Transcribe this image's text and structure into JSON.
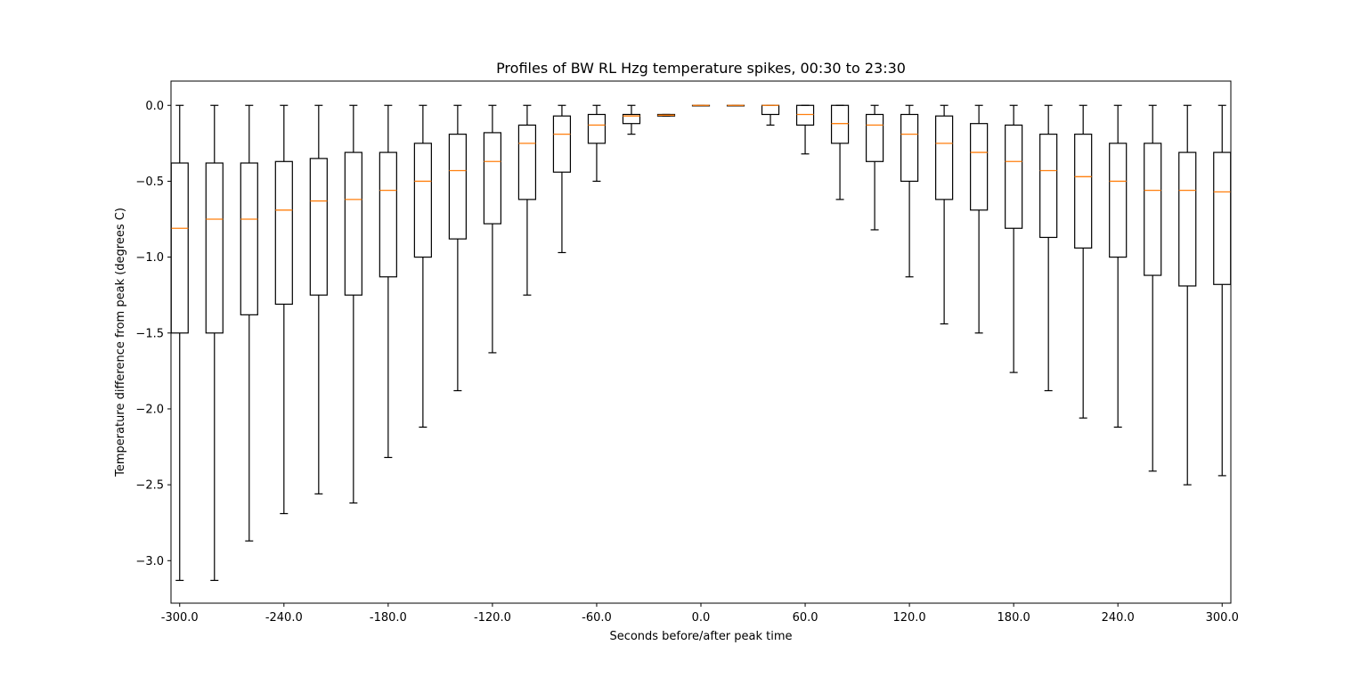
{
  "chart_data": {
    "type": "boxplot",
    "title": "Profiles of BW RL Hzg temperature spikes, 00:30 to 23:30",
    "xlabel": "Seconds before/after peak time",
    "ylabel": "Temperature difference from peak (degrees C)",
    "xlim": [
      -305,
      305
    ],
    "ylim": [
      -3.28,
      0.16
    ],
    "x_ticks": [
      -300,
      -240,
      -180,
      -120,
      -60,
      0,
      60,
      120,
      180,
      240,
      300
    ],
    "x_tick_labels": [
      "-300.0",
      "-240.0",
      "-180.0",
      "-120.0",
      "-60.0",
      "0.0",
      "60.0",
      "120.0",
      "180.0",
      "240.0",
      "300.0"
    ],
    "y_ticks": [
      0,
      -0.5,
      -1,
      -1.5,
      -2,
      -2.5,
      -3
    ],
    "y_tick_labels": [
      "0.0",
      "−0.5",
      "−1.0",
      "−1.5",
      "−2.0",
      "−2.5",
      "−3.0"
    ],
    "boxes": [
      {
        "x": -300,
        "whislo": -3.13,
        "q1": -1.5,
        "med": -0.81,
        "q3": -0.38,
        "whishi": 0.0
      },
      {
        "x": -280,
        "whislo": -3.13,
        "q1": -1.5,
        "med": -0.75,
        "q3": -0.38,
        "whishi": 0.0
      },
      {
        "x": -260,
        "whislo": -2.87,
        "q1": -1.38,
        "med": -0.75,
        "q3": -0.38,
        "whishi": 0.0
      },
      {
        "x": -240,
        "whislo": -2.69,
        "q1": -1.31,
        "med": -0.69,
        "q3": -0.37,
        "whishi": 0.0
      },
      {
        "x": -220,
        "whislo": -2.56,
        "q1": -1.25,
        "med": -0.63,
        "q3": -0.35,
        "whishi": 0.0
      },
      {
        "x": -200,
        "whislo": -2.62,
        "q1": -1.25,
        "med": -0.62,
        "q3": -0.31,
        "whishi": 0.0
      },
      {
        "x": -180,
        "whislo": -2.32,
        "q1": -1.13,
        "med": -0.56,
        "q3": -0.31,
        "whishi": 0.0
      },
      {
        "x": -160,
        "whislo": -2.12,
        "q1": -1.0,
        "med": -0.5,
        "q3": -0.25,
        "whishi": 0.0
      },
      {
        "x": -140,
        "whislo": -1.88,
        "q1": -0.88,
        "med": -0.43,
        "q3": -0.19,
        "whishi": 0.0
      },
      {
        "x": -120,
        "whislo": -1.63,
        "q1": -0.78,
        "med": -0.37,
        "q3": -0.18,
        "whishi": 0.0
      },
      {
        "x": -100,
        "whislo": -1.25,
        "q1": -0.62,
        "med": -0.25,
        "q3": -0.13,
        "whishi": 0.0
      },
      {
        "x": -80,
        "whislo": -0.97,
        "q1": -0.44,
        "med": -0.19,
        "q3": -0.07,
        "whishi": 0.0
      },
      {
        "x": -60,
        "whislo": -0.5,
        "q1": -0.25,
        "med": -0.13,
        "q3": -0.06,
        "whishi": 0.0
      },
      {
        "x": -40,
        "whislo": -0.19,
        "q1": -0.12,
        "med": -0.07,
        "q3": -0.06,
        "whishi": 0.0
      },
      {
        "x": -20,
        "whislo": -0.07,
        "q1": -0.07,
        "med": -0.065,
        "q3": -0.06,
        "whishi": -0.06
      },
      {
        "x": 0,
        "whislo": 0.0,
        "q1": 0.0,
        "med": 0.0,
        "q3": 0.0,
        "whishi": 0.0
      },
      {
        "x": 20,
        "whislo": 0.0,
        "q1": 0.0,
        "med": 0.0,
        "q3": 0.0,
        "whishi": 0.0
      },
      {
        "x": 40,
        "whislo": -0.13,
        "q1": -0.06,
        "med": 0.0,
        "q3": 0.0,
        "whishi": 0.0
      },
      {
        "x": 60,
        "whislo": -0.32,
        "q1": -0.13,
        "med": -0.06,
        "q3": 0.0,
        "whishi": 0.0
      },
      {
        "x": 80,
        "whislo": -0.62,
        "q1": -0.25,
        "med": -0.12,
        "q3": 0.0,
        "whishi": 0.0
      },
      {
        "x": 100,
        "whislo": -0.82,
        "q1": -0.37,
        "med": -0.13,
        "q3": -0.06,
        "whishi": 0.0
      },
      {
        "x": 120,
        "whislo": -1.13,
        "q1": -0.5,
        "med": -0.19,
        "q3": -0.06,
        "whishi": 0.0
      },
      {
        "x": 140,
        "whislo": -1.44,
        "q1": -0.62,
        "med": -0.25,
        "q3": -0.07,
        "whishi": 0.0
      },
      {
        "x": 160,
        "whislo": -1.5,
        "q1": -0.69,
        "med": -0.31,
        "q3": -0.12,
        "whishi": 0.0
      },
      {
        "x": 180,
        "whislo": -1.76,
        "q1": -0.81,
        "med": -0.37,
        "q3": -0.13,
        "whishi": 0.0
      },
      {
        "x": 200,
        "whislo": -1.88,
        "q1": -0.87,
        "med": -0.43,
        "q3": -0.19,
        "whishi": 0.0
      },
      {
        "x": 220,
        "whislo": -2.06,
        "q1": -0.94,
        "med": -0.47,
        "q3": -0.19,
        "whishi": 0.0
      },
      {
        "x": 240,
        "whislo": -2.12,
        "q1": -1.0,
        "med": -0.5,
        "q3": -0.25,
        "whishi": 0.0
      },
      {
        "x": 260,
        "whislo": -2.41,
        "q1": -1.12,
        "med": -0.56,
        "q3": -0.25,
        "whishi": 0.0
      },
      {
        "x": 280,
        "whislo": -2.5,
        "q1": -1.19,
        "med": -0.56,
        "q3": -0.31,
        "whishi": 0.0
      },
      {
        "x": 300,
        "whislo": -2.44,
        "q1": -1.18,
        "med": -0.57,
        "q3": -0.31,
        "whishi": 0.0
      }
    ],
    "colors": {
      "box": "#000000",
      "median": "#ff7f0e",
      "background": "#ffffff"
    }
  }
}
